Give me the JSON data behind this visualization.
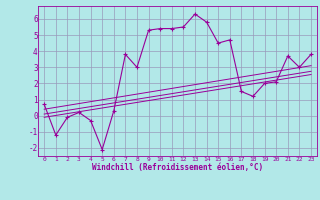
{
  "xlabel": "Windchill (Refroidissement éolien,°C)",
  "background_color": "#b2e8e8",
  "line_color": "#990099",
  "grid_color": "#9999bb",
  "axis_bg": "#b2e8e8",
  "xlim": [
    -0.5,
    23.5
  ],
  "ylim": [
    -2.5,
    6.8
  ],
  "xtick_labels": [
    "0",
    "1",
    "2",
    "3",
    "4",
    "5",
    "6",
    "7",
    "8",
    "9",
    "10",
    "11",
    "12",
    "13",
    "14",
    "15",
    "16",
    "17",
    "18",
    "19",
    "20",
    "21",
    "22",
    "23"
  ],
  "xtick_vals": [
    0,
    1,
    2,
    3,
    4,
    5,
    6,
    7,
    8,
    9,
    10,
    11,
    12,
    13,
    14,
    15,
    16,
    17,
    18,
    19,
    20,
    21,
    22,
    23
  ],
  "yticks": [
    -2,
    -1,
    0,
    1,
    2,
    3,
    4,
    5,
    6
  ],
  "main_x": [
    0,
    1,
    2,
    3,
    4,
    5,
    6,
    7,
    8,
    9,
    10,
    11,
    12,
    13,
    14,
    15,
    16,
    17,
    18,
    19,
    20,
    21,
    22,
    23
  ],
  "main_y": [
    0.7,
    -1.2,
    -0.1,
    0.2,
    -0.3,
    -2.1,
    0.3,
    3.8,
    3.0,
    5.3,
    5.4,
    5.4,
    5.5,
    6.3,
    5.8,
    4.5,
    4.7,
    1.5,
    1.2,
    2.0,
    2.1,
    3.7,
    3.0,
    3.8
  ],
  "reg_lines": [
    {
      "x": [
        0,
        23
      ],
      "y": [
        -0.1,
        2.55
      ]
    },
    {
      "x": [
        0,
        23
      ],
      "y": [
        0.1,
        2.75
      ]
    },
    {
      "x": [
        0,
        23
      ],
      "y": [
        0.4,
        3.1
      ]
    }
  ]
}
